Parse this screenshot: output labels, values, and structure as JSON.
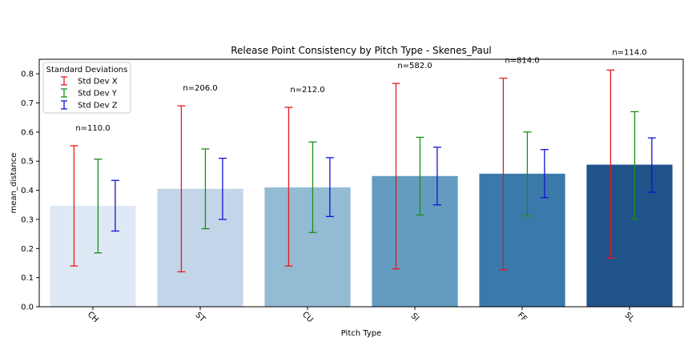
{
  "chart_data": {
    "type": "bar",
    "title": "Release Point Consistency by Pitch Type - Skenes_Paul",
    "xlabel": "Pitch Type",
    "ylabel": "mean_distance",
    "ylim": [
      0,
      0.85
    ],
    "yticks": [
      "0.0",
      "0.1",
      "0.2",
      "0.3",
      "0.4",
      "0.5",
      "0.6",
      "0.7",
      "0.8"
    ],
    "grid": false,
    "legend_position": "top-left",
    "categories": [
      "CH",
      "ST",
      "CU",
      "SI",
      "FF",
      "SL"
    ],
    "values": [
      0.347,
      0.405,
      0.41,
      0.449,
      0.457,
      0.488
    ],
    "bar_colors": [
      "#dfe9f5",
      "#c3d6e9",
      "#94bbd4",
      "#639cc0",
      "#3b79ab",
      "#205389"
    ],
    "counts": [
      "n=110.0",
      "n=206.0",
      "n=212.0",
      "n=582.0",
      "n=814.0",
      "n=114.0"
    ],
    "legend": {
      "title": "Standard Deviations",
      "entries": [
        "Std Dev X",
        "Std Dev Y",
        "Std Dev Z"
      ]
    },
    "series": [
      {
        "name": "Std Dev X",
        "color": "#e8191e",
        "low": [
          0.14,
          0.12,
          0.14,
          0.13,
          0.127,
          0.167
        ],
        "high": [
          0.553,
          0.69,
          0.685,
          0.767,
          0.785,
          0.813
        ]
      },
      {
        "name": "Std Dev Y",
        "color": "#1a8c1a",
        "low": [
          0.185,
          0.268,
          0.255,
          0.315,
          0.312,
          0.3
        ],
        "high": [
          0.507,
          0.542,
          0.566,
          0.582,
          0.6,
          0.67
        ]
      },
      {
        "name": "Std Dev Z",
        "color": "#1212d9",
        "low": [
          0.26,
          0.3,
          0.31,
          0.35,
          0.375,
          0.393
        ],
        "high": [
          0.434,
          0.51,
          0.512,
          0.548,
          0.54,
          0.58
        ]
      }
    ]
  }
}
